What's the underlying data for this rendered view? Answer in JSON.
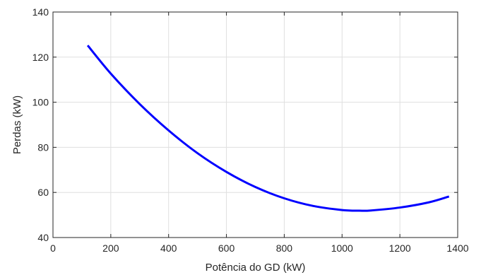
{
  "chart_data": {
    "type": "line",
    "xlabel": "Potência do GD (kW)",
    "ylabel": "Perdas (kW)",
    "xlim": [
      0,
      1400
    ],
    "ylim": [
      40,
      140
    ],
    "xticks": [
      0,
      200,
      400,
      600,
      800,
      1000,
      1200,
      1400
    ],
    "yticks": [
      40,
      60,
      80,
      100,
      120,
      140
    ],
    "grid": true,
    "series": [
      {
        "color": "#0000ff",
        "x": [
          120,
          200,
          300,
          400,
          500,
          600,
          700,
          800,
          900,
          1000,
          1060,
          1100,
          1200,
          1300,
          1370
        ],
        "y": [
          125.2,
          112.7,
          99.2,
          87.5,
          77.4,
          69.1,
          62.4,
          57.4,
          54.0,
          52.2,
          51.9,
          52.0,
          53.3,
          55.6,
          58.2
        ]
      }
    ]
  }
}
